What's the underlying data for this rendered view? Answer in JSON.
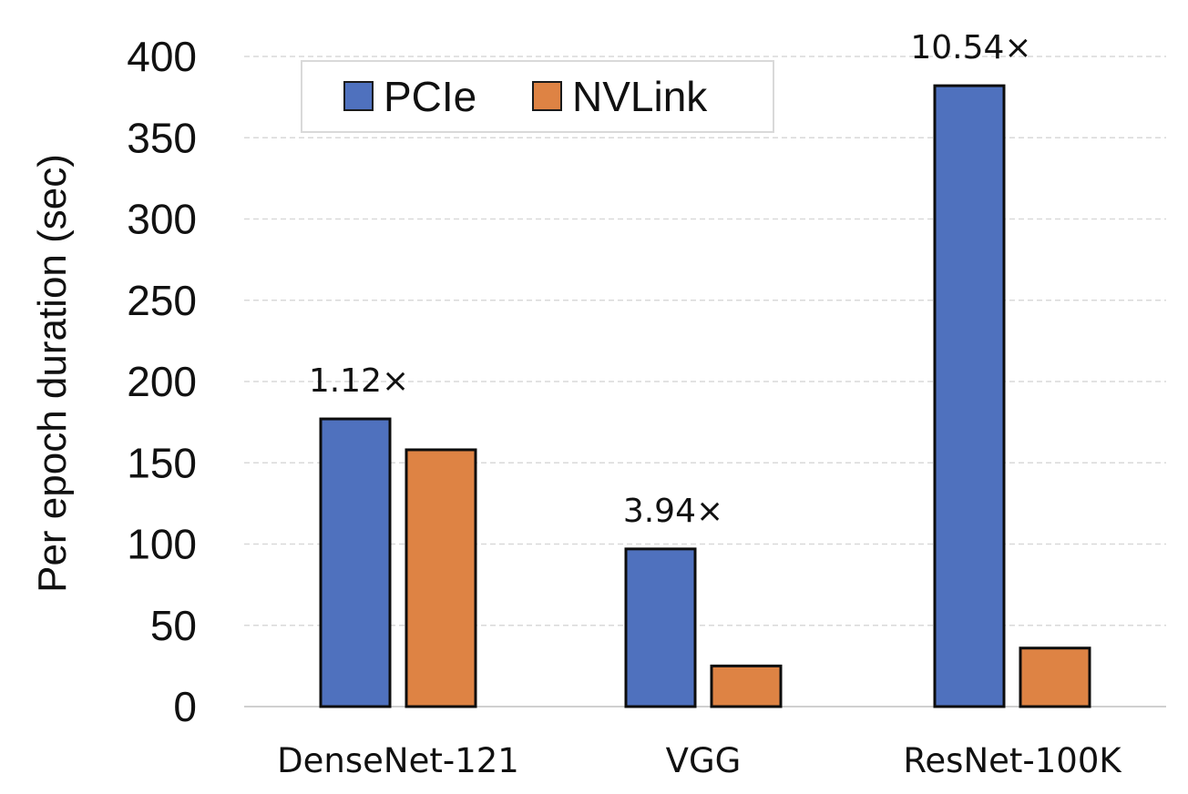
{
  "chart_data": {
    "type": "bar",
    "title": "",
    "xlabel": "",
    "ylabel": "Per epoch duration (sec)",
    "ylim": [
      0,
      400
    ],
    "yticks": [
      0,
      50,
      100,
      150,
      200,
      250,
      300,
      350,
      400
    ],
    "grid": true,
    "legend_position": "top-left",
    "categories": [
      "DenseNet-121",
      "VGG",
      "ResNet-100K"
    ],
    "series": [
      {
        "name": "PCIe",
        "color": "#4F71BE",
        "values": [
          177,
          97,
          382
        ]
      },
      {
        "name": "NVLink",
        "color": "#DE8344",
        "values": [
          158,
          25,
          36
        ]
      }
    ],
    "annotations": [
      "1.12×",
      "3.94×",
      "10.54×"
    ]
  }
}
